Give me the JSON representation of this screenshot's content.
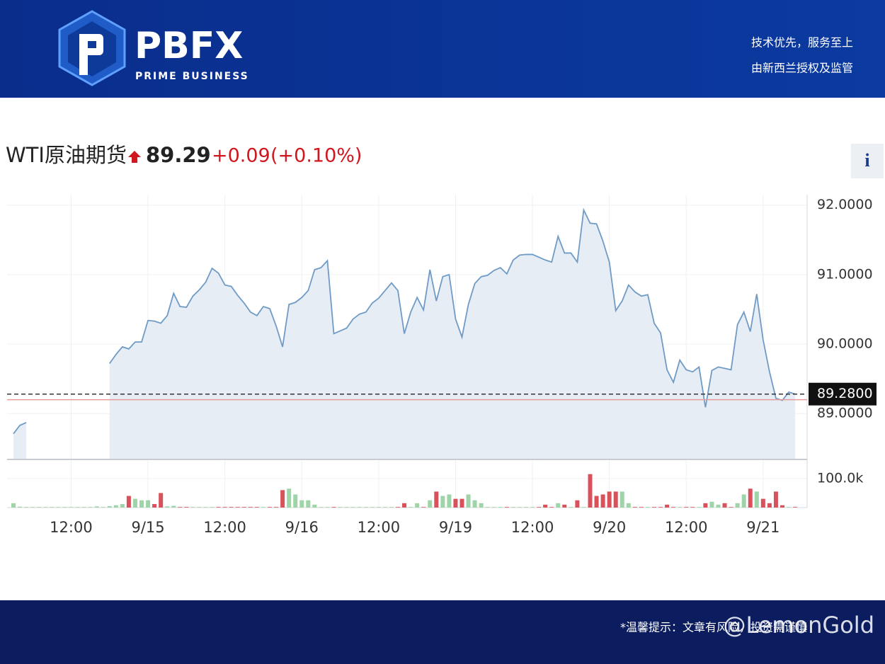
{
  "header": {
    "logo": "PBFX",
    "tagline": "PRIME BUSINESS",
    "slogans": [
      "技术优先，服务至上",
      "由新西兰授权及监管"
    ]
  },
  "quote": {
    "name": "WTI原油期货",
    "price": "89.29",
    "change": "+0.09",
    "change_pct": "(+0.10%)",
    "info_button": "i"
  },
  "footer": {
    "notice": "*温馨提示：文章有风险，投资需谨慎",
    "watermark": "@LemonGold"
  },
  "chart_data": {
    "type": "line",
    "categories": [
      null,
      null,
      null,
      null,
      null,
      null,
      null,
      null,
      null,
      "12:00",
      null,
      null,
      null,
      null,
      null,
      null,
      null,
      null,
      null,
      null,
      null,
      "9/15",
      null,
      null,
      null,
      null,
      null,
      null,
      null,
      null,
      null,
      null,
      null,
      "12:00",
      null,
      null,
      null,
      null,
      null,
      null,
      null,
      null,
      null,
      null,
      null,
      "9/16",
      null,
      null,
      null,
      null,
      null,
      null,
      null,
      null,
      null,
      null,
      null,
      "12:00",
      null,
      null,
      null,
      null,
      null,
      null,
      null,
      null,
      null,
      null,
      null,
      "9/19",
      null,
      null,
      null,
      null,
      null,
      null,
      null,
      null,
      null,
      null,
      null,
      "12:00",
      null,
      null,
      null,
      null,
      null,
      null,
      null,
      null,
      null,
      null,
      null,
      "9/20",
      null,
      null,
      null,
      null,
      null,
      null,
      null,
      null,
      null,
      null,
      null,
      "12:00",
      null,
      null,
      null,
      null,
      null,
      null,
      null,
      null,
      null,
      null,
      null,
      "9/21",
      null,
      null,
      null,
      null,
      null
    ],
    "values": [
      88.71,
      88.83,
      88.87,
      null,
      null,
      null,
      null,
      null,
      null,
      null,
      null,
      null,
      null,
      null,
      null,
      89.72,
      89.85,
      89.96,
      89.93,
      90.03,
      90.03,
      90.34,
      90.33,
      90.3,
      90.41,
      90.73,
      90.54,
      90.53,
      90.69,
      90.78,
      90.89,
      91.09,
      91.02,
      90.85,
      90.83,
      90.7,
      90.59,
      90.46,
      90.41,
      90.54,
      90.51,
      90.26,
      89.96,
      90.57,
      90.6,
      90.67,
      90.77,
      91.07,
      91.1,
      91.2,
      90.15,
      90.19,
      90.23,
      90.36,
      90.43,
      90.46,
      90.59,
      90.66,
      90.77,
      90.88,
      90.77,
      90.15,
      90.46,
      90.67,
      90.49,
      91.07,
      90.62,
      90.97,
      91.0,
      90.36,
      90.1,
      90.57,
      90.87,
      90.97,
      90.99,
      91.06,
      91.1,
      91.01,
      91.21,
      91.28,
      91.29,
      91.29,
      91.25,
      91.21,
      91.18,
      91.55,
      91.31,
      91.31,
      91.18,
      91.93,
      91.74,
      91.73,
      91.48,
      91.18,
      90.48,
      90.62,
      90.85,
      90.75,
      90.69,
      90.71,
      90.3,
      90.16,
      89.63,
      89.45,
      89.77,
      89.63,
      89.6,
      89.67,
      89.09,
      89.62,
      89.67,
      89.65,
      89.63,
      90.28,
      90.46,
      90.18,
      90.72,
      90.06,
      89.6,
      89.22,
      89.19,
      89.31,
      89.28
    ],
    "color": "#6f9bc6",
    "fill_color": "#e6edf5",
    "volumes": [
      15000,
      3000,
      2000,
      2000,
      2000,
      2000,
      2000,
      2000,
      2000,
      2000,
      2000,
      2000,
      2000,
      4000,
      2000,
      5000,
      8000,
      12000,
      40000,
      30000,
      25000,
      25000,
      12000,
      50000,
      4000,
      6000,
      2000,
      2000,
      2000,
      2000,
      2000,
      2000,
      2000,
      2000,
      2000,
      2000,
      2000,
      2000,
      2000,
      2000,
      2000,
      2000,
      60000,
      65000,
      45000,
      25000,
      25000,
      10000,
      2000,
      2000,
      2000,
      2000,
      2000,
      2000,
      2000,
      2000,
      2000,
      2000,
      2000,
      2000,
      2000,
      15000,
      2000,
      15000,
      2000,
      25000,
      55000,
      40000,
      45000,
      30000,
      30000,
      45000,
      25000,
      15000,
      2000,
      2000,
      2000,
      2000,
      2000,
      2000,
      2000,
      2000,
      2000,
      10000,
      2000,
      15000,
      10000,
      2000,
      25000,
      2000,
      115000,
      40000,
      45000,
      55000,
      55000,
      55000,
      15000,
      2000,
      2000,
      2000,
      2000,
      2000,
      10000,
      2000,
      2000,
      2000,
      2000,
      2000,
      15000,
      20000,
      10000,
      15000,
      2000,
      15000,
      45000,
      65000,
      55000,
      30000,
      15000,
      55000,
      8000,
      2000,
      2000
    ],
    "up_color": "#9fd3a8",
    "down_color": "#d9515a",
    "ylim": [
      88.35,
      92.15
    ],
    "yticks": [
      {
        "value": 89,
        "label": "89.0000"
      },
      {
        "value": 90,
        "label": "90.0000"
      },
      {
        "value": 91,
        "label": "91.0000"
      },
      {
        "value": 92,
        "label": "92.0000"
      }
    ],
    "y2lim": [
      0,
      163000
    ],
    "y2ticks": [
      {
        "value": 100000,
        "label": "100.0k"
      }
    ],
    "last_price": {
      "value": 89.28,
      "label": "89.2800"
    },
    "reference_line": {
      "value": 89.2,
      "color": "#e89a9a"
    },
    "grid": true
  }
}
